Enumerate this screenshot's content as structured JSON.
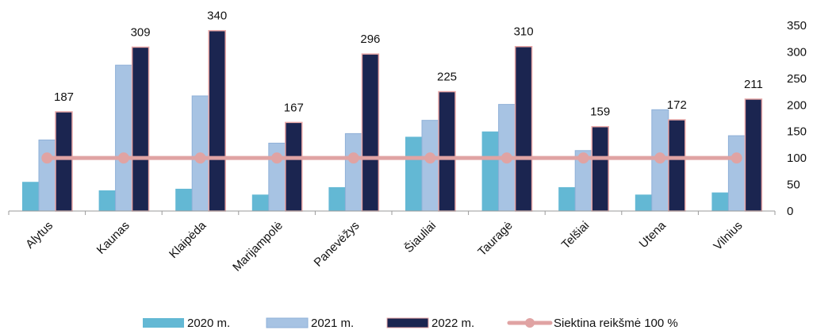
{
  "chart_data": {
    "type": "bar",
    "categories": [
      "Alytus",
      "Kaunas",
      "Klaipėda",
      "Marijampolė",
      "Panevėžys",
      "Šiauliai",
      "Tauragė",
      "Telšiai",
      "Utena",
      "Vilnius"
    ],
    "series": [
      {
        "name": "2020 m.",
        "kind": "bar",
        "color": "#63b8d4",
        "values": [
          55,
          39,
          42,
          31,
          45,
          140,
          150,
          45,
          31,
          35
        ]
      },
      {
        "name": "2021 m.",
        "kind": "bar",
        "color": "#a7c3e3",
        "values": [
          134,
          275,
          217,
          128,
          146,
          171,
          201,
          114,
          191,
          142
        ]
      },
      {
        "name": "2022 m.",
        "kind": "bar",
        "color": "#1b2550",
        "values": [
          187,
          309,
          340,
          167,
          296,
          225,
          310,
          159,
          172,
          211
        ]
      },
      {
        "name": "Siektina reikšmė 100 %",
        "kind": "line",
        "color": "#e0a3a3",
        "values": [
          100,
          100,
          100,
          100,
          100,
          100,
          100,
          100,
          100,
          100
        ]
      }
    ],
    "data_labels_2022": [
      "187",
      "309",
      "340",
      "167",
      "296",
      "225",
      "310",
      "159",
      "172",
      "211"
    ],
    "y_axis": {
      "side": "right",
      "ylim": [
        0,
        350
      ],
      "ticks": [
        "0",
        "50",
        "100",
        "150",
        "200",
        "250",
        "300",
        "350"
      ]
    },
    "grid": false,
    "legend": {
      "placement": "bottom",
      "labels": [
        "2020 m.",
        "2021 m.",
        "2022 m.",
        "Siektina reikšmė 100 %"
      ]
    },
    "title": "",
    "xlabel": "",
    "ylabel": ""
  }
}
